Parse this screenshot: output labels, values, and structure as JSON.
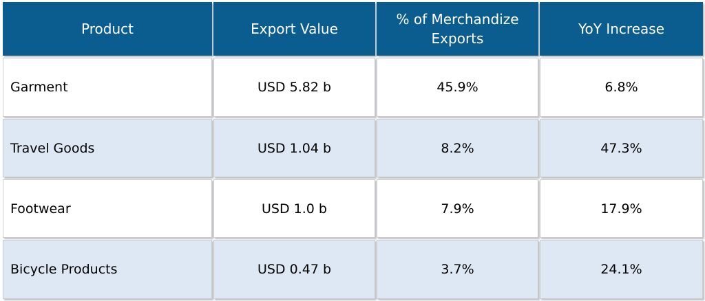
{
  "table": {
    "headers": [
      "Product",
      "Export Value",
      "% of Merchandize Exports",
      "YoY Increase"
    ],
    "rows": [
      [
        "Garment",
        "USD 5.82 b",
        "45.9%",
        "6.8%"
      ],
      [
        "Travel Goods",
        "USD 1.04 b",
        "8.2%",
        "47.3%"
      ],
      [
        "Footwear",
        "USD 1.0 b",
        "7.9%",
        "17.9%"
      ],
      [
        "Bicycle Products",
        "USD 0.47 b",
        "3.7%",
        "24.1%"
      ]
    ]
  },
  "colors": {
    "header_bg": "#0b5d8f",
    "header_text": "#ffffff",
    "row_alt_bg": "#dde8f4",
    "row_bg": "#ffffff"
  }
}
